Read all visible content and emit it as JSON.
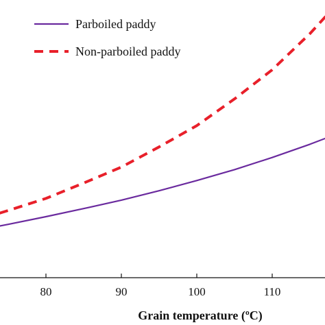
{
  "chart_data": {
    "type": "line",
    "xlabel": "Grain temperature (ºC)",
    "ylabel": "",
    "title": "",
    "xlim": [
      70,
      118
    ],
    "x_ticks": [
      80,
      90,
      100,
      110
    ],
    "x_tick_labels": [
      "80",
      "90",
      "100",
      "110"
    ],
    "y_axis_visible": false,
    "grid": false,
    "legend_position": "top-left",
    "series": [
      {
        "name": "Parboiled paddy",
        "color": "#6a2a9e",
        "style": "solid",
        "x": [
          70,
          75,
          80,
          85,
          90,
          95,
          100,
          105,
          110,
          115,
          118
        ],
        "y": [
          0.09,
          0.128,
          0.168,
          0.21,
          0.254,
          0.303,
          0.356,
          0.413,
          0.476,
          0.545,
          0.59
        ]
      },
      {
        "name": "Non-parboiled paddy",
        "color": "#e8202a",
        "style": "dashed",
        "x": [
          70,
          75,
          80,
          85,
          90,
          95,
          100,
          105,
          110,
          115,
          118
        ],
        "y": [
          0.14,
          0.2,
          0.263,
          0.343,
          0.426,
          0.531,
          0.642,
          0.781,
          0.933,
          1.121,
          1.25
        ]
      }
    ]
  }
}
